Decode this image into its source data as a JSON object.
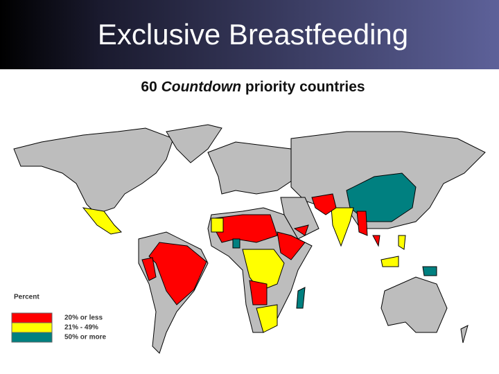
{
  "header": {
    "title": "Exclusive Breastfeeding"
  },
  "map": {
    "subtitle": {
      "count": "60",
      "name": "Countdown",
      "rest": "priority countries"
    }
  },
  "legend": {
    "title": "Percent",
    "items": [
      {
        "label": "20% or less",
        "color": "#ff0000"
      },
      {
        "label": "21% - 49%",
        "color": "#ffff00"
      },
      {
        "label": "50% or more",
        "color": "#008080"
      }
    ]
  }
}
